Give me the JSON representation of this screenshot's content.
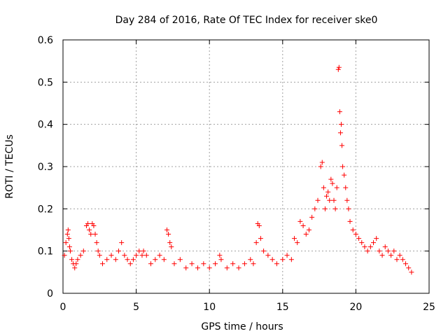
{
  "chart_data": {
    "type": "scatter",
    "title": "Day 284 of 2016, Rate Of TEC Index for receiver ske0",
    "xlabel": "GPS time / hours",
    "ylabel": "ROTI / TECUs",
    "xlim": [
      0,
      25
    ],
    "ylim": [
      0,
      0.6
    ],
    "xticks": [
      0,
      5,
      10,
      15,
      20,
      25
    ],
    "yticks": [
      0,
      0.1,
      0.2,
      0.3,
      0.4,
      0.5,
      0.6
    ],
    "xtick_labels": [
      "0",
      "5",
      "10",
      "15",
      "20",
      "25"
    ],
    "ytick_labels": [
      "0",
      "0.1",
      "0.2",
      "0.3",
      "0.4",
      "0.5",
      "0.6"
    ],
    "grid": true,
    "marker": "+",
    "color": "#ff0000",
    "series": [
      {
        "name": "ske0",
        "x": [
          0.1,
          0.2,
          0.3,
          0.35,
          0.4,
          0.45,
          0.5,
          0.6,
          0.7,
          0.8,
          0.9,
          1.0,
          1.2,
          1.4,
          1.6,
          1.7,
          1.8,
          1.9,
          2.0,
          2.1,
          2.2,
          2.3,
          2.4,
          2.5,
          2.7,
          3.0,
          3.3,
          3.6,
          3.8,
          4.0,
          4.2,
          4.4,
          4.6,
          4.8,
          5.0,
          5.2,
          5.4,
          5.5,
          5.7,
          6.0,
          6.3,
          6.6,
          6.9,
          7.1,
          7.2,
          7.3,
          7.4,
          7.6,
          8.0,
          8.4,
          8.8,
          9.2,
          9.6,
          10.0,
          10.4,
          10.7,
          10.8,
          11.2,
          11.6,
          12.0,
          12.4,
          12.8,
          13.0,
          13.2,
          13.3,
          13.4,
          13.5,
          13.7,
          14.0,
          14.3,
          14.6,
          15.0,
          15.3,
          15.6,
          15.8,
          16.0,
          16.2,
          16.4,
          16.6,
          16.8,
          17.0,
          17.2,
          17.4,
          17.6,
          17.7,
          17.8,
          17.9,
          18.0,
          18.1,
          18.2,
          18.3,
          18.4,
          18.5,
          18.6,
          18.7,
          18.8,
          18.85,
          18.9,
          18.95,
          19.0,
          19.05,
          19.1,
          19.2,
          19.3,
          19.4,
          19.5,
          19.6,
          19.8,
          20.0,
          20.2,
          20.4,
          20.6,
          20.8,
          21.0,
          21.2,
          21.4,
          21.6,
          21.8,
          22.0,
          22.2,
          22.4,
          22.6,
          22.8,
          23.0,
          23.2,
          23.4,
          23.6,
          23.8
        ],
        "y": [
          0.09,
          0.12,
          0.14,
          0.15,
          0.13,
          0.11,
          0.1,
          0.08,
          0.07,
          0.06,
          0.07,
          0.08,
          0.09,
          0.1,
          0.16,
          0.165,
          0.15,
          0.14,
          0.165,
          0.16,
          0.14,
          0.12,
          0.1,
          0.09,
          0.07,
          0.08,
          0.09,
          0.08,
          0.1,
          0.12,
          0.09,
          0.08,
          0.07,
          0.08,
          0.09,
          0.1,
          0.09,
          0.1,
          0.09,
          0.07,
          0.08,
          0.09,
          0.08,
          0.15,
          0.14,
          0.12,
          0.11,
          0.07,
          0.08,
          0.06,
          0.07,
          0.06,
          0.07,
          0.06,
          0.07,
          0.09,
          0.08,
          0.06,
          0.07,
          0.06,
          0.07,
          0.08,
          0.07,
          0.12,
          0.165,
          0.16,
          0.13,
          0.1,
          0.09,
          0.08,
          0.07,
          0.08,
          0.09,
          0.08,
          0.13,
          0.12,
          0.17,
          0.16,
          0.14,
          0.15,
          0.18,
          0.2,
          0.22,
          0.3,
          0.31,
          0.25,
          0.2,
          0.23,
          0.24,
          0.22,
          0.27,
          0.26,
          0.22,
          0.2,
          0.25,
          0.53,
          0.535,
          0.43,
          0.38,
          0.4,
          0.35,
          0.3,
          0.28,
          0.25,
          0.22,
          0.2,
          0.17,
          0.15,
          0.14,
          0.13,
          0.12,
          0.11,
          0.1,
          0.11,
          0.12,
          0.13,
          0.1,
          0.09,
          0.11,
          0.1,
          0.09,
          0.1,
          0.08,
          0.09,
          0.08,
          0.07,
          0.06,
          0.05
        ]
      }
    ]
  }
}
